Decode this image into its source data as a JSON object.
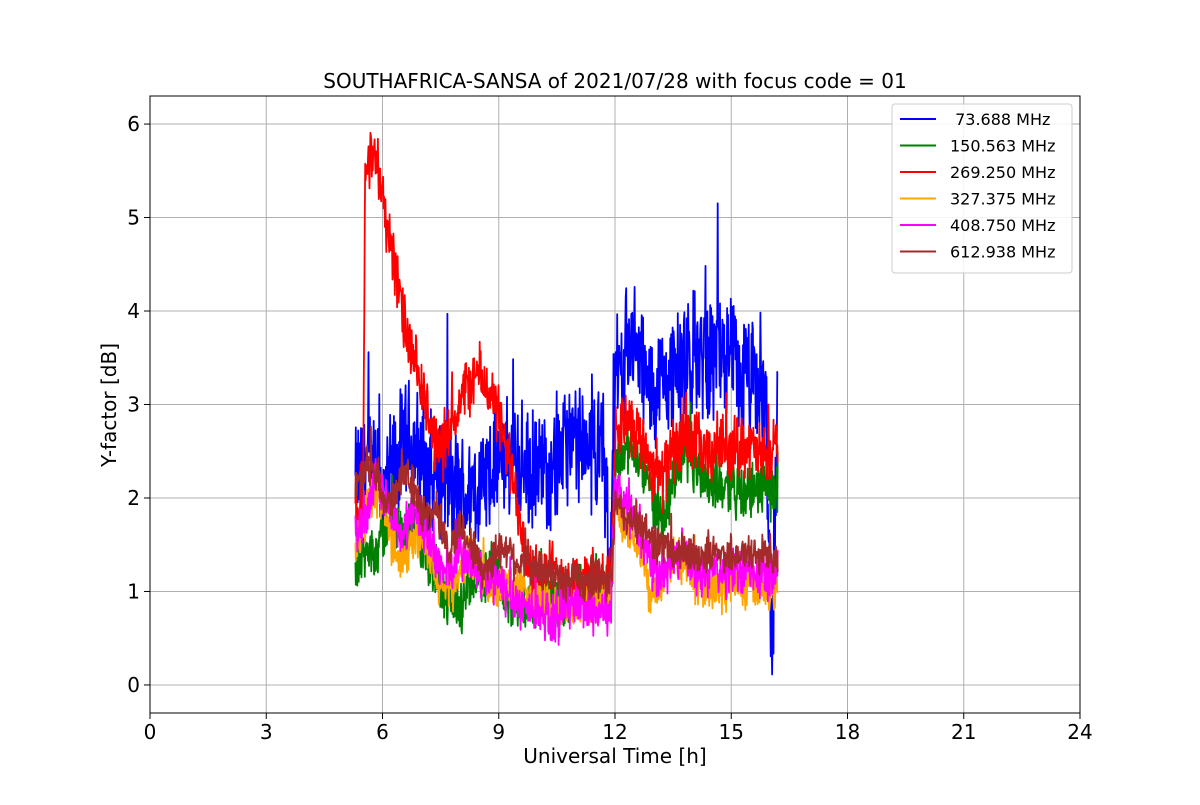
{
  "chart_data": {
    "type": "line",
    "title": "SOUTHAFRICA-SANSA of 2021/07/28 with focus code = 01",
    "xlabel": "Universal Time [h]",
    "ylabel": "Y-factor [dB]",
    "xlim": [
      0,
      24
    ],
    "ylim": [
      -0.3,
      6.3
    ],
    "xticks": [
      0,
      3,
      6,
      9,
      12,
      15,
      18,
      21,
      24
    ],
    "xtick_labels": [
      "0",
      "3",
      "6",
      "9",
      "12",
      "15",
      "18",
      "21",
      "24"
    ],
    "yticks": [
      0,
      1,
      2,
      3,
      4,
      5,
      6
    ],
    "ytick_labels": [
      "0",
      "1",
      "2",
      "3",
      "4",
      "5",
      "6"
    ],
    "grid": true,
    "legend_position": "top-right",
    "series": [
      {
        "name": " 73.688 MHz",
        "color": "#0000ff",
        "x": [
          5.3,
          5.6,
          5.8,
          6.0,
          6.3,
          6.6,
          6.9,
          7.2,
          7.5,
          7.8,
          8.1,
          8.4,
          8.7,
          9.0,
          9.3,
          9.6,
          9.9,
          10.2,
          10.5,
          10.8,
          11.1,
          11.4,
          11.7,
          11.85,
          12.0,
          12.3,
          12.6,
          12.9,
          13.2,
          13.5,
          13.8,
          14.1,
          14.4,
          14.7,
          15.0,
          15.3,
          15.6,
          15.9,
          16.05,
          16.2
        ],
        "y": [
          2.1,
          2.4,
          2.2,
          2.0,
          2.3,
          2.6,
          2.5,
          2.2,
          2.3,
          2.1,
          2.0,
          2.1,
          2.2,
          2.4,
          2.5,
          2.3,
          2.2,
          2.3,
          2.5,
          2.6,
          2.5,
          2.6,
          2.5,
          1.2,
          3.2,
          3.6,
          3.5,
          3.1,
          3.2,
          3.4,
          3.3,
          3.6,
          3.5,
          3.6,
          3.4,
          3.3,
          3.2,
          3.0,
          0.1,
          3.2
        ],
        "noise": 0.55
      },
      {
        "name": "150.563 MHz",
        "color": "#008000",
        "x": [
          5.3,
          5.6,
          5.9,
          6.2,
          6.5,
          6.8,
          7.1,
          7.4,
          7.7,
          8.0,
          8.3,
          8.6,
          8.9,
          9.2,
          9.5,
          9.8,
          10.1,
          10.4,
          10.7,
          11.0,
          11.3,
          11.6,
          11.9,
          12.0,
          12.3,
          12.6,
          12.9,
          13.2,
          13.5,
          13.8,
          14.1,
          14.4,
          14.7,
          15.0,
          15.3,
          15.6,
          15.9,
          16.2
        ],
        "y": [
          1.3,
          1.4,
          1.5,
          1.8,
          1.6,
          1.7,
          1.4,
          1.2,
          0.9,
          0.8,
          1.1,
          1.2,
          1.3,
          1.0,
          0.8,
          0.9,
          1.0,
          0.9,
          0.9,
          1.0,
          1.0,
          1.1,
          1.0,
          2.3,
          2.6,
          2.4,
          2.1,
          1.8,
          2.1,
          2.5,
          2.3,
          2.2,
          2.1,
          2.2,
          2.0,
          2.1,
          2.1,
          2.1
        ],
        "noise": 0.25
      },
      {
        "name": "269.250 MHz",
        "color": "#ff0000",
        "x": [
          5.3,
          5.5,
          5.55,
          5.7,
          5.9,
          6.1,
          6.3,
          6.5,
          6.7,
          6.9,
          7.1,
          7.3,
          7.5,
          7.7,
          7.9,
          8.1,
          8.3,
          8.5,
          8.7,
          8.9,
          9.1,
          9.3,
          9.5,
          9.8,
          10.1,
          10.4,
          10.7,
          11.0,
          11.3,
          11.6,
          11.9,
          12.0,
          12.3,
          12.6,
          12.9,
          13.2,
          13.5,
          13.8,
          14.1,
          14.4,
          14.7,
          15.0,
          15.3,
          15.6,
          15.9,
          16.2
        ],
        "y": [
          1.9,
          1.9,
          5.7,
          5.7,
          5.5,
          5.0,
          4.5,
          4.0,
          3.6,
          3.3,
          3.0,
          2.7,
          2.5,
          2.7,
          2.9,
          3.1,
          3.3,
          3.3,
          3.2,
          3.0,
          2.7,
          2.3,
          1.9,
          1.3,
          1.2,
          1.2,
          1.1,
          1.1,
          1.1,
          1.1,
          1.1,
          2.7,
          2.9,
          2.7,
          2.4,
          2.2,
          2.5,
          2.6,
          2.6,
          2.4,
          2.6,
          2.5,
          2.6,
          2.5,
          2.4,
          2.6
        ],
        "noise": 0.28
      },
      {
        "name": "327.375 MHz",
        "color": "#ffa500",
        "x": [
          5.3,
          5.6,
          5.9,
          6.2,
          6.5,
          6.8,
          7.1,
          7.4,
          7.7,
          8.0,
          8.3,
          8.6,
          8.9,
          9.2,
          9.5,
          9.8,
          10.1,
          10.4,
          10.7,
          11.0,
          11.3,
          11.6,
          11.9,
          12.0,
          12.3,
          12.6,
          12.9,
          13.2,
          13.5,
          13.8,
          14.1,
          14.4,
          14.7,
          15.0,
          15.3,
          15.6,
          15.9,
          16.2
        ],
        "y": [
          1.5,
          1.8,
          2.1,
          1.6,
          1.3,
          1.6,
          1.5,
          1.1,
          1.0,
          1.2,
          1.4,
          1.1,
          1.0,
          1.1,
          1.0,
          0.9,
          0.9,
          0.8,
          0.8,
          0.9,
          0.9,
          0.9,
          0.9,
          2.0,
          1.7,
          1.5,
          1.0,
          1.1,
          1.4,
          1.3,
          1.1,
          1.1,
          1.0,
          1.1,
          1.0,
          1.1,
          1.0,
          1.1
        ],
        "noise": 0.2
      },
      {
        "name": "408.750 MHz",
        "color": "#ff00ff",
        "x": [
          5.3,
          5.6,
          5.9,
          6.2,
          6.5,
          6.8,
          7.1,
          7.4,
          7.7,
          8.0,
          8.3,
          8.6,
          8.9,
          9.2,
          9.5,
          9.8,
          10.1,
          10.4,
          10.7,
          11.0,
          11.3,
          11.6,
          11.9,
          12.0,
          12.3,
          12.6,
          12.9,
          13.2,
          13.5,
          13.8,
          14.1,
          14.4,
          14.7,
          15.0,
          15.3,
          15.6,
          15.9,
          16.2
        ],
        "y": [
          1.6,
          1.9,
          2.2,
          1.8,
          1.6,
          1.9,
          1.7,
          1.3,
          1.2,
          1.4,
          1.3,
          1.1,
          1.1,
          1.0,
          0.9,
          0.8,
          0.8,
          0.7,
          0.8,
          0.9,
          0.8,
          0.8,
          0.8,
          2.1,
          1.9,
          1.7,
          1.3,
          1.2,
          1.3,
          1.4,
          1.2,
          1.2,
          1.2,
          1.2,
          1.2,
          1.2,
          1.2,
          1.2
        ],
        "noise": 0.22
      },
      {
        "name": "612.938 MHz",
        "color": "#a52a2a",
        "x": [
          5.3,
          5.6,
          5.9,
          6.2,
          6.5,
          6.8,
          7.1,
          7.4,
          7.7,
          8.0,
          8.3,
          8.6,
          8.9,
          9.2,
          9.5,
          9.8,
          10.1,
          10.4,
          10.7,
          11.0,
          11.3,
          11.6,
          11.9,
          12.0,
          12.3,
          12.6,
          12.9,
          13.2,
          13.5,
          13.8,
          14.1,
          14.4,
          14.7,
          15.0,
          15.3,
          15.6,
          15.9,
          16.2
        ],
        "y": [
          2.1,
          2.4,
          2.2,
          1.9,
          2.3,
          2.1,
          1.8,
          1.9,
          1.4,
          1.7,
          1.5,
          1.2,
          1.4,
          1.5,
          1.3,
          1.3,
          1.2,
          1.2,
          1.1,
          1.2,
          1.1,
          1.1,
          1.1,
          1.9,
          1.8,
          1.7,
          1.6,
          1.5,
          1.4,
          1.4,
          1.4,
          1.4,
          1.4,
          1.4,
          1.4,
          1.4,
          1.4,
          1.4
        ],
        "noise": 0.18
      }
    ]
  }
}
